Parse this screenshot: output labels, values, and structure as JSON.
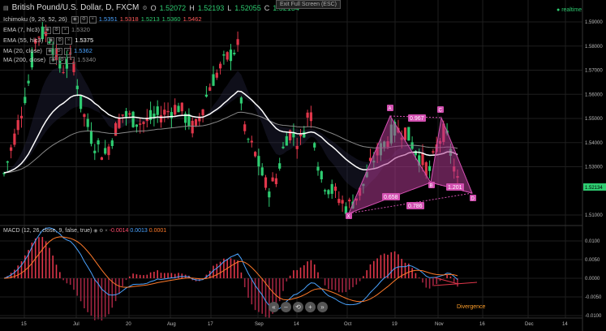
{
  "header": {
    "symbol": "British Pound/U.S. Dollar, D, FXCM",
    "o_label": "O",
    "o_value": "1.52072",
    "h_label": "H",
    "h_value": "1.52193",
    "l_label": "L",
    "l_value": "1.52055",
    "c_label": "C",
    "c_value": "1.52134"
  },
  "exit_fullscreen": "Exit Full Screen (ESC)",
  "realtime": "realtime",
  "indicators": [
    {
      "label": "Ichimoku (9, 26, 52, 26)",
      "vals": [
        "1.5351",
        "1.5318",
        "1.5213",
        "1.5360",
        "1.5462"
      ],
      "colors": [
        "#4aa3ff",
        "#ff5a5a",
        "#2ecc71",
        "#2ecc71",
        "#ff5a5a"
      ]
    },
    {
      "label": "EMA (7, hlc3)",
      "vals": [
        "1.5320"
      ],
      "colors": [
        "#888888"
      ]
    },
    {
      "label": "EMA (55, hlc3)",
      "vals": [
        "1.5375"
      ],
      "colors": [
        "#ffffff"
      ]
    },
    {
      "label": "MA (20, close)",
      "vals": [
        "1.5362"
      ],
      "colors": [
        "#4aa3ff"
      ]
    },
    {
      "label": "MA (200, close)",
      "vals": [
        "1.5340"
      ],
      "colors": [
        "#888888"
      ]
    }
  ],
  "macd": {
    "label": "MACD (12, 26, close, 9, false, true)",
    "vals": [
      "-0.0014",
      "0.0013",
      "0.0001"
    ],
    "colors": [
      "#ff4d6d",
      "#4aa3ff",
      "#ff7a2a"
    ]
  },
  "price_axis": [
    "1.59000",
    "1.58000",
    "1.57000",
    "1.56000",
    "1.55000",
    "1.54000",
    "1.53000",
    "1.52134",
    "1.51000"
  ],
  "macd_axis": [
    "0.0100",
    "0.0050",
    "0.0000",
    "-0.0050",
    "-0.0100"
  ],
  "time_axis": [
    "15",
    "Jul",
    "20",
    "Aug",
    "17",
    "Sep",
    "14",
    "Oct",
    "19",
    "Nov",
    "16",
    "Dec",
    "14"
  ],
  "pattern_points": [
    "X",
    "A",
    "B",
    "C",
    "D"
  ],
  "pattern_ratios": [
    "0.967",
    "0.658",
    "0.786",
    "1.201"
  ],
  "divergence_label": "Divergence",
  "colors": {
    "up": "#2ecc71",
    "down": "#e0364a",
    "pattern": "#b03a92",
    "ema55": "#ffffff",
    "ma200": "#888888",
    "ma20": "#4aa3ff"
  }
}
